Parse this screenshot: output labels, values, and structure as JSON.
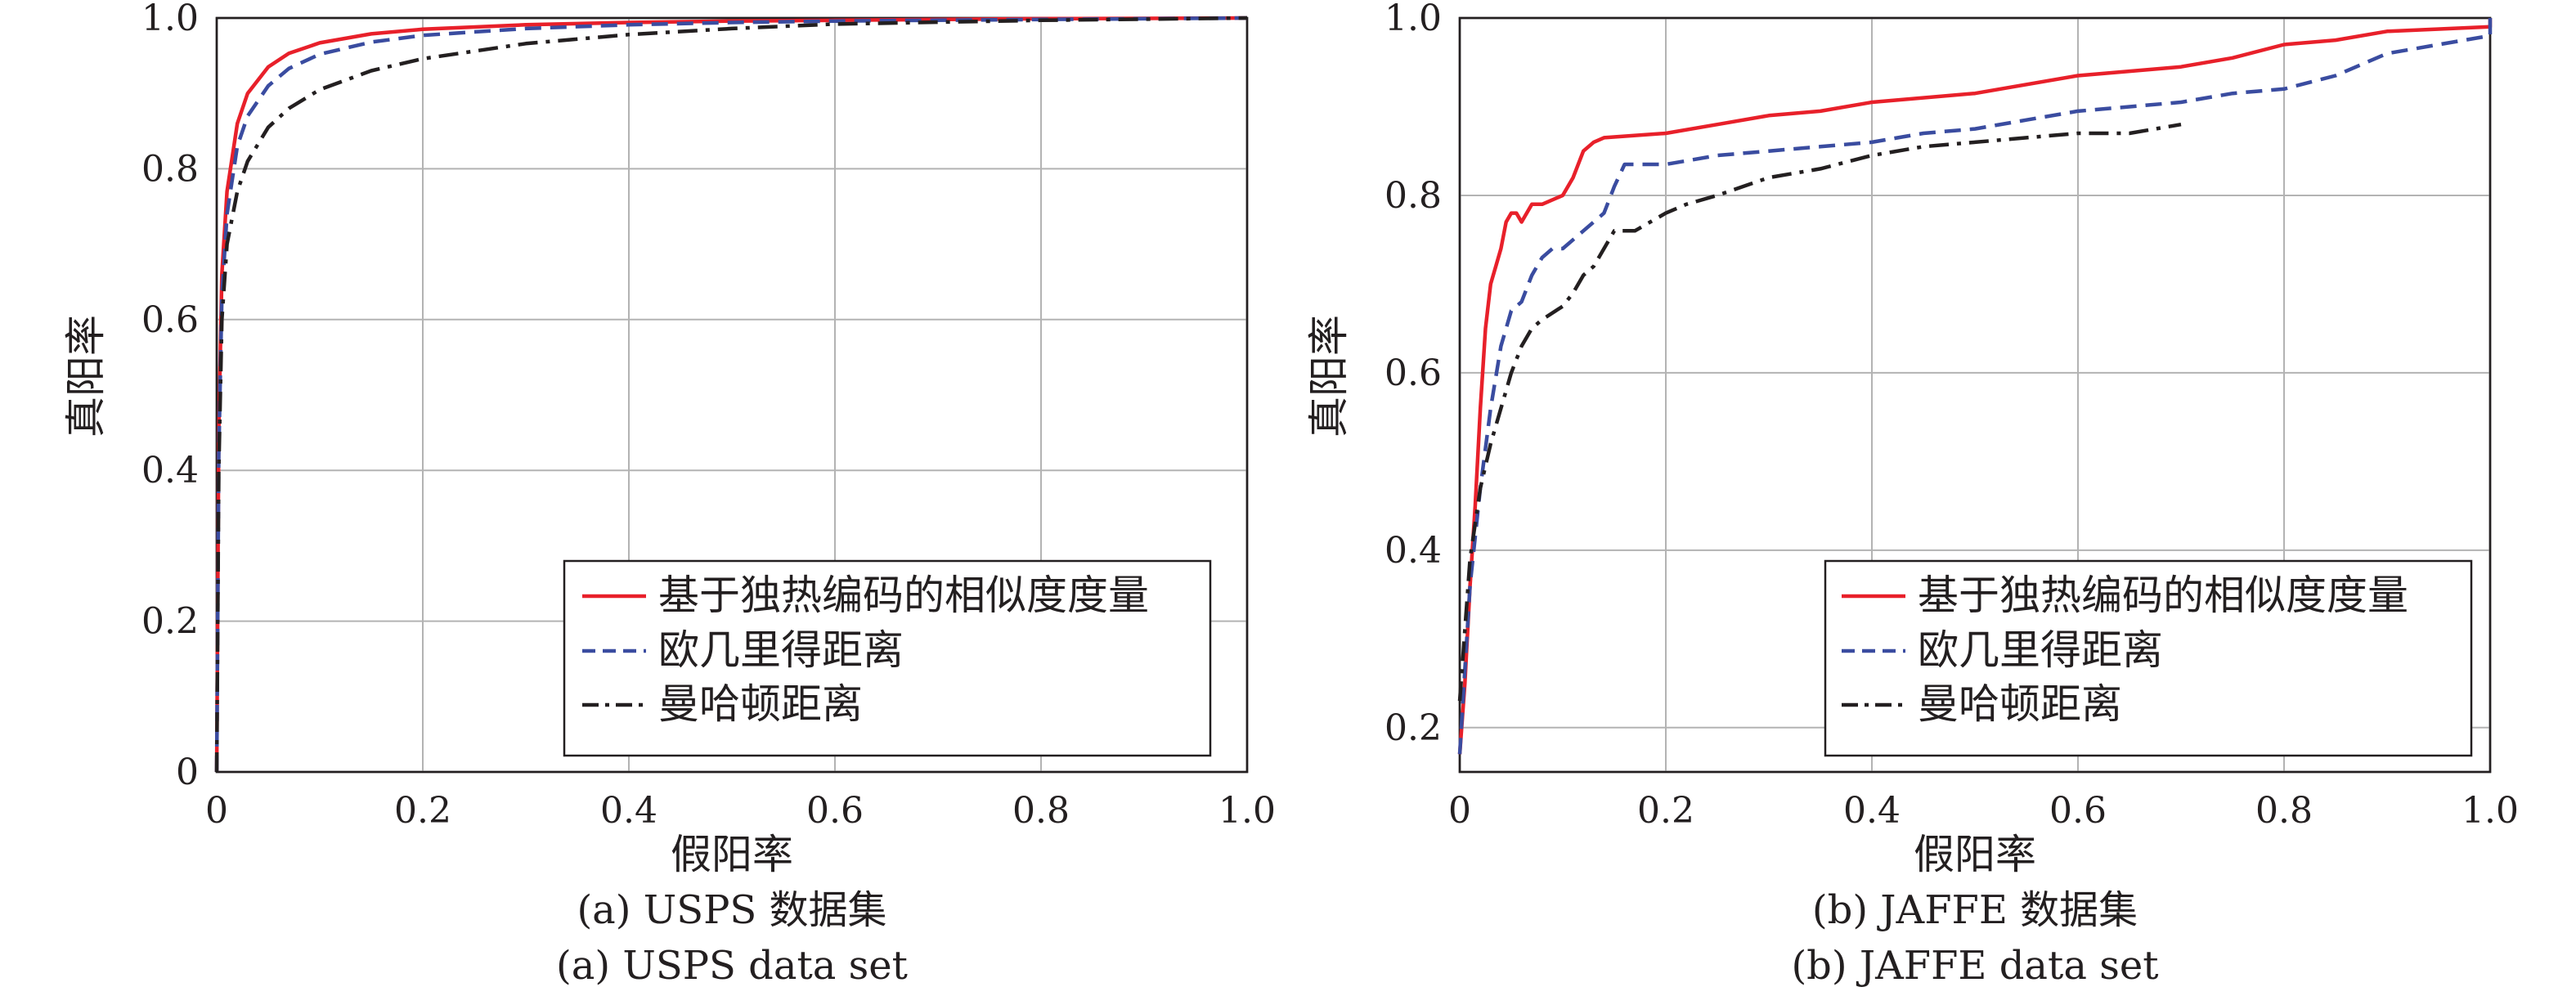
{
  "chart_data": [
    {
      "type": "line",
      "caption_zh": "(a) USPS 数据集",
      "caption_en": "(a) USPS data set",
      "xlabel": "假阳率",
      "ylabel": "真阳率",
      "xlim": [
        0,
        1.0
      ],
      "ylim": [
        0,
        1.0
      ],
      "xticks": [
        "0",
        "0.2",
        "0.4",
        "0.6",
        "0.8",
        "1.0"
      ],
      "yticks": [
        "0",
        "0.2",
        "0.4",
        "0.6",
        "0.8",
        "1.0"
      ],
      "grid": true,
      "legend_position": "bottom-right",
      "series": [
        {
          "name": "基于独热编码的相似度度量",
          "color": "#e8202a",
          "style": "solid",
          "x": [
            0,
            0.002,
            0.005,
            0.01,
            0.02,
            0.03,
            0.05,
            0.07,
            0.1,
            0.15,
            0.2,
            0.3,
            0.4,
            0.5,
            0.6,
            0.8,
            1.0
          ],
          "y": [
            0,
            0.45,
            0.66,
            0.77,
            0.86,
            0.9,
            0.935,
            0.953,
            0.967,
            0.979,
            0.985,
            0.991,
            0.994,
            0.996,
            0.997,
            0.999,
            1.0
          ]
        },
        {
          "name": "欧几里得距离",
          "color": "#3a4ca0",
          "style": "dashed",
          "x": [
            0,
            0.002,
            0.005,
            0.01,
            0.02,
            0.03,
            0.05,
            0.07,
            0.1,
            0.15,
            0.2,
            0.3,
            0.4,
            0.5,
            0.6,
            0.8,
            1.0
          ],
          "y": [
            0,
            0.42,
            0.63,
            0.74,
            0.83,
            0.87,
            0.91,
            0.933,
            0.952,
            0.968,
            0.977,
            0.986,
            0.991,
            0.994,
            0.996,
            0.998,
            1.0
          ]
        },
        {
          "name": "曼哈顿距离",
          "color": "#231f20",
          "style": "dashdot",
          "x": [
            0,
            0.002,
            0.005,
            0.01,
            0.02,
            0.03,
            0.05,
            0.07,
            0.1,
            0.15,
            0.2,
            0.3,
            0.4,
            0.5,
            0.6,
            0.8,
            1.0
          ],
          "y": [
            0,
            0.4,
            0.6,
            0.7,
            0.77,
            0.81,
            0.855,
            0.88,
            0.905,
            0.93,
            0.946,
            0.966,
            0.978,
            0.986,
            0.992,
            0.997,
            1.0
          ]
        }
      ]
    },
    {
      "type": "line",
      "caption_zh": "(b) JAFFE 数据集",
      "caption_en": "(b) JAFFE data set",
      "xlabel": "假阳率",
      "ylabel": "真阳率",
      "xlim": [
        0,
        1.0
      ],
      "ylim": [
        0.15,
        1.0
      ],
      "xticks": [
        "0",
        "0.2",
        "0.4",
        "0.6",
        "0.8",
        "1.0"
      ],
      "yticks": [
        "0.2",
        "0.4",
        "0.6",
        "0.8",
        "1.0"
      ],
      "grid": true,
      "legend_position": "bottom-right",
      "series": [
        {
          "name": "基于独热编码的相似度度量",
          "color": "#e8202a",
          "style": "solid",
          "x": [
            0,
            0.005,
            0.01,
            0.015,
            0.02,
            0.025,
            0.03,
            0.035,
            0.04,
            0.045,
            0.05,
            0.055,
            0.06,
            0.07,
            0.08,
            0.1,
            0.11,
            0.12,
            0.13,
            0.14,
            0.2,
            0.25,
            0.3,
            0.35,
            0.4,
            0.5,
            0.6,
            0.7,
            0.75,
            0.8,
            0.85,
            0.9,
            1.0,
            1.0
          ],
          "y": [
            0.17,
            0.25,
            0.36,
            0.45,
            0.56,
            0.65,
            0.7,
            0.72,
            0.74,
            0.77,
            0.78,
            0.78,
            0.77,
            0.79,
            0.79,
            0.8,
            0.82,
            0.85,
            0.86,
            0.865,
            0.87,
            0.88,
            0.89,
            0.895,
            0.905,
            0.915,
            0.935,
            0.945,
            0.955,
            0.97,
            0.975,
            0.985,
            0.99,
            1.0
          ]
        },
        {
          "name": "欧几里得距离",
          "color": "#3a4ca0",
          "style": "dashed",
          "x": [
            0,
            0.01,
            0.02,
            0.03,
            0.04,
            0.05,
            0.06,
            0.07,
            0.08,
            0.09,
            0.1,
            0.12,
            0.13,
            0.14,
            0.15,
            0.16,
            0.2,
            0.25,
            0.3,
            0.35,
            0.4,
            0.45,
            0.5,
            0.55,
            0.6,
            0.65,
            0.7,
            0.75,
            0.8,
            0.85,
            0.9,
            0.95,
            1.0,
            1.0
          ],
          "y": [
            0.17,
            0.36,
            0.47,
            0.56,
            0.63,
            0.67,
            0.68,
            0.71,
            0.73,
            0.74,
            0.74,
            0.76,
            0.77,
            0.78,
            0.81,
            0.835,
            0.835,
            0.845,
            0.85,
            0.855,
            0.86,
            0.87,
            0.875,
            0.885,
            0.895,
            0.9,
            0.905,
            0.915,
            0.92,
            0.935,
            0.96,
            0.97,
            0.98,
            1.0
          ]
        },
        {
          "name": "曼哈顿距离",
          "color": "#231f20",
          "style": "dashdot",
          "x": [
            0,
            0.01,
            0.02,
            0.03,
            0.04,
            0.05,
            0.06,
            0.07,
            0.08,
            0.1,
            0.11,
            0.12,
            0.13,
            0.14,
            0.15,
            0.17,
            0.2,
            0.22,
            0.25,
            0.3,
            0.35,
            0.4,
            0.45,
            0.5,
            0.55,
            0.6,
            0.65,
            0.7
          ],
          "y": [
            0.23,
            0.39,
            0.47,
            0.52,
            0.56,
            0.6,
            0.63,
            0.65,
            0.66,
            0.675,
            0.69,
            0.71,
            0.72,
            0.74,
            0.76,
            0.76,
            0.78,
            0.79,
            0.8,
            0.82,
            0.83,
            0.845,
            0.855,
            0.86,
            0.865,
            0.87,
            0.87,
            0.88
          ]
        }
      ]
    }
  ]
}
